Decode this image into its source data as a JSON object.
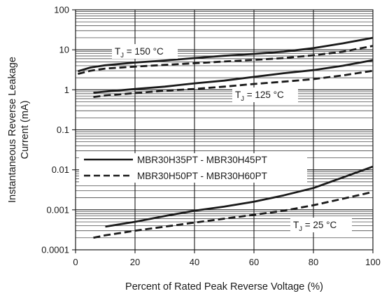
{
  "chart_data": {
    "type": "line",
    "xlabel": "Percent of Rated Peak Reverse Voltage (%)",
    "ylabel_lines": [
      "Instantaneous Reverse Leakage",
      "Current (mA)"
    ],
    "xlim": [
      0,
      100
    ],
    "ylim": [
      0.0001,
      100
    ],
    "yscale": "log",
    "grid": true,
    "x_ticks": [
      "0",
      "20",
      "40",
      "60",
      "80",
      "100"
    ],
    "y_ticks": [
      "0.0001",
      "0.001",
      "0.01",
      "0.1",
      "1",
      "10",
      "100"
    ],
    "legend": [
      {
        "label": "MBR30H35PT - MBR30H45PT",
        "style": "solid"
      },
      {
        "label": "MBR30H50PT - MBR30H60PT",
        "style": "dashed"
      }
    ],
    "annotations": [
      {
        "base": "T",
        "sub": "J",
        "rest": " = 150 °C"
      },
      {
        "base": "T",
        "sub": "J",
        "rest": " = 125 °C"
      },
      {
        "base": "T",
        "sub": "J",
        "rest": " = 25 °C"
      }
    ],
    "series": [
      {
        "style": "solid",
        "temperature": "150 °C",
        "points": [
          [
            0.8,
            2.9
          ],
          [
            5,
            3.6
          ],
          [
            10,
            4.1
          ],
          [
            20,
            4.8
          ],
          [
            30,
            5.4
          ],
          [
            40,
            6.2
          ],
          [
            50,
            7.1
          ],
          [
            60,
            7.9
          ],
          [
            70,
            9.0
          ],
          [
            80,
            11.0
          ],
          [
            90,
            14.5
          ],
          [
            100,
            20.0
          ]
        ]
      },
      {
        "style": "dashed",
        "temperature": "150 °C",
        "points": [
          [
            0.8,
            2.5
          ],
          [
            5,
            3.0
          ],
          [
            10,
            3.4
          ],
          [
            20,
            3.8
          ],
          [
            30,
            4.2
          ],
          [
            40,
            4.6
          ],
          [
            50,
            5.1
          ],
          [
            60,
            5.6
          ],
          [
            70,
            6.2
          ],
          [
            80,
            7.3
          ],
          [
            90,
            9.0
          ],
          [
            100,
            12.5
          ]
        ]
      },
      {
        "style": "solid",
        "temperature": "125 °C",
        "points": [
          [
            6,
            0.85
          ],
          [
            10,
            0.9
          ],
          [
            20,
            1.05
          ],
          [
            30,
            1.2
          ],
          [
            40,
            1.45
          ],
          [
            50,
            1.7
          ],
          [
            60,
            2.1
          ],
          [
            70,
            2.6
          ],
          [
            80,
            3.1
          ],
          [
            90,
            4.0
          ],
          [
            100,
            5.5
          ]
        ]
      },
      {
        "style": "dashed",
        "temperature": "125 °C",
        "points": [
          [
            6,
            0.66
          ],
          [
            10,
            0.72
          ],
          [
            20,
            0.83
          ],
          [
            30,
            0.95
          ],
          [
            40,
            1.05
          ],
          [
            50,
            1.2
          ],
          [
            60,
            1.4
          ],
          [
            70,
            1.6
          ],
          [
            80,
            1.85
          ],
          [
            90,
            2.3
          ],
          [
            100,
            3.0
          ]
        ]
      },
      {
        "style": "solid",
        "temperature": "25 °C",
        "points": [
          [
            10,
            0.00038
          ],
          [
            20,
            0.0005
          ],
          [
            30,
            0.0007
          ],
          [
            40,
            0.00095
          ],
          [
            50,
            0.0012
          ],
          [
            60,
            0.0016
          ],
          [
            70,
            0.0023
          ],
          [
            80,
            0.0035
          ],
          [
            90,
            0.0065
          ],
          [
            100,
            0.012
          ]
        ]
      },
      {
        "style": "dashed",
        "temperature": "25 °C",
        "points": [
          [
            6,
            0.0002
          ],
          [
            10,
            0.00023
          ],
          [
            20,
            0.0003
          ],
          [
            30,
            0.00038
          ],
          [
            40,
            0.00048
          ],
          [
            50,
            0.0006
          ],
          [
            60,
            0.00075
          ],
          [
            70,
            0.00095
          ],
          [
            80,
            0.0013
          ],
          [
            90,
            0.0019
          ],
          [
            100,
            0.0028
          ]
        ]
      }
    ]
  }
}
